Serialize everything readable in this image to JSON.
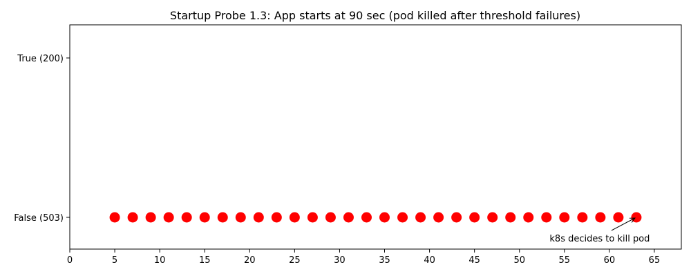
{
  "chart_data": {
    "type": "scatter",
    "title": "Startup Probe 1.3: App starts at 90 sec (pod killed after threshold failures)",
    "xlabel": "",
    "ylabel": "",
    "xlim": [
      0,
      68
    ],
    "xticks": [
      0,
      5,
      10,
      15,
      20,
      25,
      30,
      35,
      40,
      45,
      50,
      55,
      60,
      65
    ],
    "yticks": [
      {
        "value": 1,
        "label": "True (200)"
      },
      {
        "value": 0,
        "label": "False (503)"
      }
    ],
    "grid": false,
    "legend": "none",
    "series": [
      {
        "color": "#ff0000",
        "x": [
          5,
          7,
          9,
          11,
          13,
          15,
          17,
          19,
          21,
          23,
          25,
          27,
          29,
          31,
          33,
          35,
          37,
          39,
          41,
          43,
          45,
          47,
          49,
          51,
          53,
          55,
          57,
          59,
          61,
          63
        ],
        "y": [
          0,
          0,
          0,
          0,
          0,
          0,
          0,
          0,
          0,
          0,
          0,
          0,
          0,
          0,
          0,
          0,
          0,
          0,
          0,
          0,
          0,
          0,
          0,
          0,
          0,
          0,
          0,
          0,
          0,
          0
        ]
      }
    ],
    "annotations": [
      {
        "text": "k8s decides to kill pod",
        "x": 63,
        "y": 0
      }
    ]
  }
}
